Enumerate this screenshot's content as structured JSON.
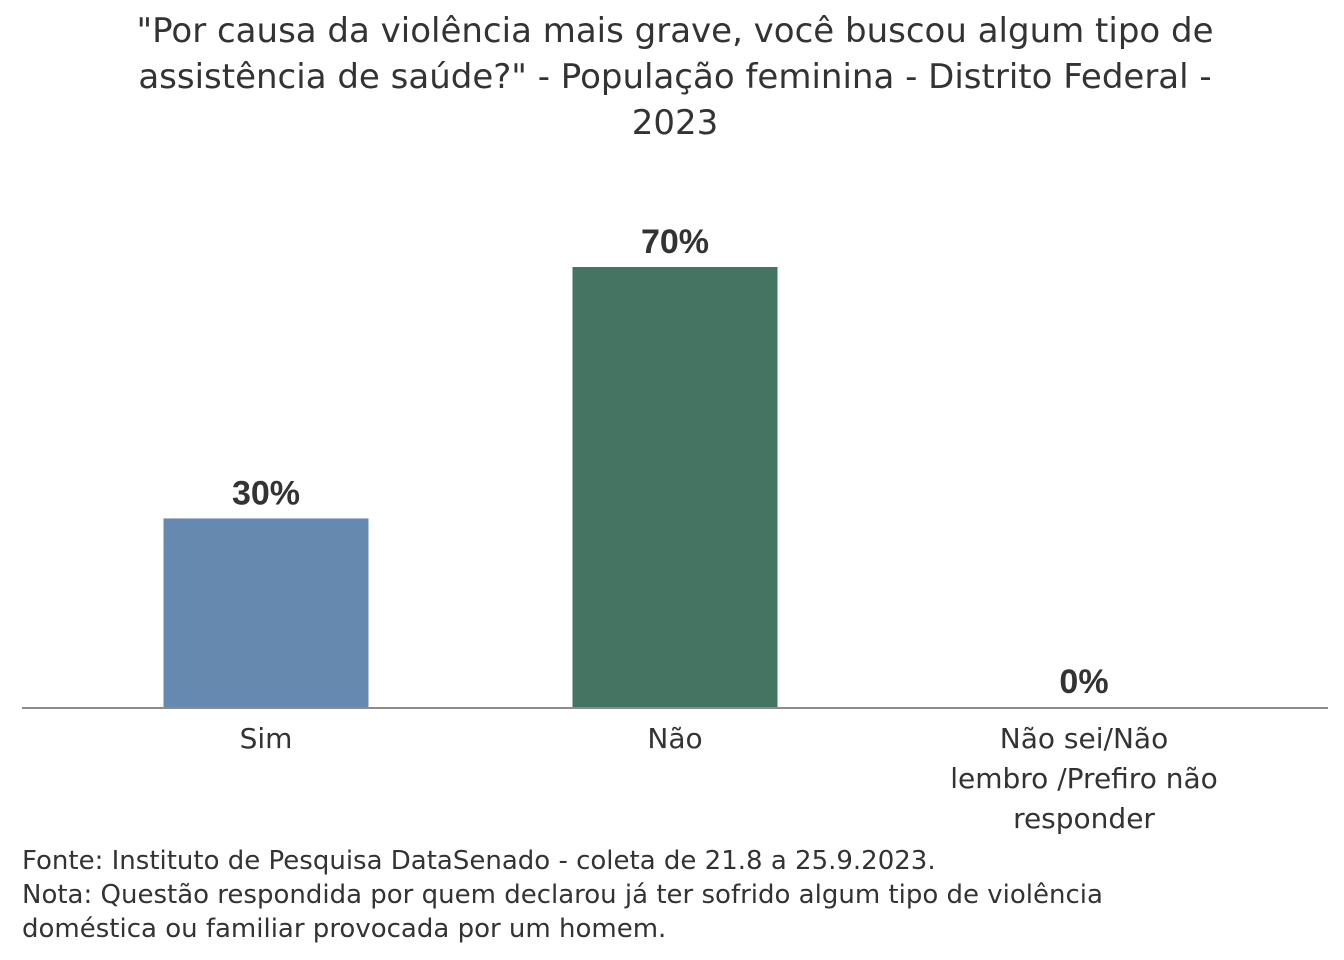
{
  "chart_data": {
    "type": "bar",
    "title": "\"Por causa da violência mais grave, você buscou algum tipo de assistência de saúde?\" - População feminina - Distrito Federal - 2023",
    "categories": [
      "Sim",
      "Não",
      "Não sei/Não lembro /Prefiro não responder"
    ],
    "category_label_lines": [
      [
        "Sim"
      ],
      [
        "Não"
      ],
      [
        "Não sei/Não",
        "lembro /Prefiro não",
        "responder"
      ]
    ],
    "values": [
      30,
      70,
      0
    ],
    "value_labels": [
      "30%",
      "70%",
      "0%"
    ],
    "colors": [
      "#6689b0",
      "#447563",
      "#9aa7b5"
    ],
    "ylim": [
      0,
      70
    ],
    "grid": false,
    "legend": "none"
  },
  "footer": {
    "source": "Fonte: Instituto de Pesquisa DataSenado - coleta de 21.8 a 25.9.2023.",
    "note_line1": "Nota: Questão respondida por quem declarou já ter sofrido algum tipo de violência",
    "note_line2": "doméstica ou familiar provocada por um homem."
  }
}
